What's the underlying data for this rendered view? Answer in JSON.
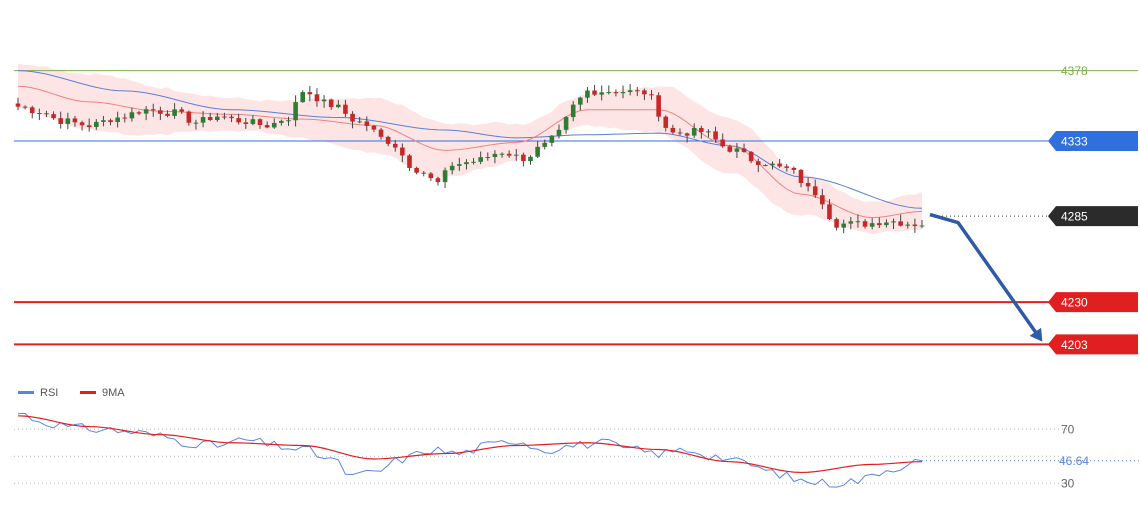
{
  "chart_data": [
    {
      "type": "candlestick",
      "panel": "price",
      "grid": false,
      "y_range": [
        4193,
        4395
      ],
      "x_count": 128,
      "levels": [
        {
          "value": 4378,
          "label": "4378",
          "color": "#7cb342",
          "style": "thin"
        },
        {
          "value": 4333,
          "label": "4333",
          "color": "#2f6fde",
          "style": "thin",
          "badge": true
        },
        {
          "value": 4285,
          "label": "4285",
          "color": "#333333",
          "style": "dotted",
          "badge": true
        },
        {
          "value": 4230,
          "label": "4230",
          "color": "#e02020",
          "style": "thick",
          "badge": true
        },
        {
          "value": 4203,
          "label": "4203",
          "color": "#e02020",
          "style": "thick",
          "badge": true
        }
      ],
      "forecast_arrow": {
        "from": 4286,
        "to": 4203,
        "color": "#2f5aa8"
      },
      "close_anchors": [
        [
          0,
          4355
        ],
        [
          3,
          4352
        ],
        [
          6,
          4346
        ],
        [
          10,
          4343
        ],
        [
          14,
          4348
        ],
        [
          18,
          4353
        ],
        [
          22,
          4351
        ],
        [
          25,
          4345
        ],
        [
          28,
          4349
        ],
        [
          31,
          4346
        ],
        [
          35,
          4343
        ],
        [
          38,
          4348
        ],
        [
          40,
          4365
        ],
        [
          44,
          4356
        ],
        [
          48,
          4345
        ],
        [
          52,
          4333
        ],
        [
          56,
          4315
        ],
        [
          59,
          4306
        ],
        [
          61,
          4318
        ],
        [
          64,
          4320
        ],
        [
          68,
          4326
        ],
        [
          71,
          4322
        ],
        [
          74,
          4330
        ],
        [
          76,
          4338
        ],
        [
          78,
          4355
        ],
        [
          80,
          4365
        ],
        [
          84,
          4365
        ],
        [
          88,
          4364
        ],
        [
          92,
          4338
        ],
        [
          96,
          4339
        ],
        [
          100,
          4328
        ],
        [
          104,
          4320
        ],
        [
          108,
          4315
        ],
        [
          112,
          4300
        ],
        [
          115,
          4280
        ],
        [
          119,
          4280
        ],
        [
          122,
          4282
        ],
        [
          126,
          4280
        ],
        [
          127,
          4280
        ]
      ],
      "bollinger_halfwidth": 14,
      "ma_slow_anchors": [
        [
          0,
          4378
        ],
        [
          15,
          4365
        ],
        [
          30,
          4353
        ],
        [
          45,
          4348
        ],
        [
          60,
          4340
        ],
        [
          70,
          4335
        ],
        [
          80,
          4337
        ],
        [
          90,
          4338
        ],
        [
          100,
          4330
        ],
        [
          110,
          4310
        ],
        [
          127,
          4290
        ]
      ],
      "ma_fast_anchors": [
        [
          0,
          4368
        ],
        [
          10,
          4358
        ],
        [
          20,
          4352
        ],
        [
          30,
          4350
        ],
        [
          40,
          4347
        ],
        [
          50,
          4343
        ],
        [
          60,
          4327
        ],
        [
          70,
          4332
        ],
        [
          80,
          4353
        ],
        [
          90,
          4353
        ],
        [
          100,
          4330
        ],
        [
          110,
          4299
        ],
        [
          120,
          4284
        ],
        [
          127,
          4288
        ]
      ]
    },
    {
      "type": "line",
      "panel": "indicator",
      "y_range": [
        25,
        88
      ],
      "x_count": 128,
      "ref_lines": [
        70,
        50,
        30
      ],
      "ref_labels": [
        "70",
        "30"
      ],
      "current_label": "46.64",
      "legend": [
        {
          "name": "RSI",
          "color": "#5b84e0"
        },
        {
          "name": "9MA",
          "color": "#e02020"
        }
      ],
      "rsi_anchors": [
        [
          0,
          82
        ],
        [
          4,
          75
        ],
        [
          8,
          71
        ],
        [
          12,
          70
        ],
        [
          16,
          68
        ],
        [
          20,
          65
        ],
        [
          24,
          60
        ],
        [
          28,
          58
        ],
        [
          32,
          62
        ],
        [
          36,
          58
        ],
        [
          40,
          55
        ],
        [
          44,
          48
        ],
        [
          47,
          35
        ],
        [
          50,
          38
        ],
        [
          54,
          48
        ],
        [
          58,
          55
        ],
        [
          62,
          52
        ],
        [
          66,
          58
        ],
        [
          70,
          62
        ],
        [
          74,
          55
        ],
        [
          78,
          58
        ],
        [
          82,
          60
        ],
        [
          86,
          55
        ],
        [
          90,
          52
        ],
        [
          94,
          55
        ],
        [
          98,
          50
        ],
        [
          102,
          45
        ],
        [
          106,
          38
        ],
        [
          110,
          32
        ],
        [
          114,
          30
        ],
        [
          118,
          32
        ],
        [
          122,
          40
        ],
        [
          126,
          46
        ],
        [
          127,
          46.64
        ]
      ],
      "ma_anchors": [
        [
          0,
          80
        ],
        [
          10,
          72
        ],
        [
          20,
          66
        ],
        [
          30,
          60
        ],
        [
          40,
          58
        ],
        [
          50,
          48
        ],
        [
          60,
          52
        ],
        [
          70,
          58
        ],
        [
          80,
          60
        ],
        [
          90,
          55
        ],
        [
          100,
          46
        ],
        [
          110,
          38
        ],
        [
          120,
          44
        ],
        [
          127,
          46
        ]
      ]
    }
  ]
}
